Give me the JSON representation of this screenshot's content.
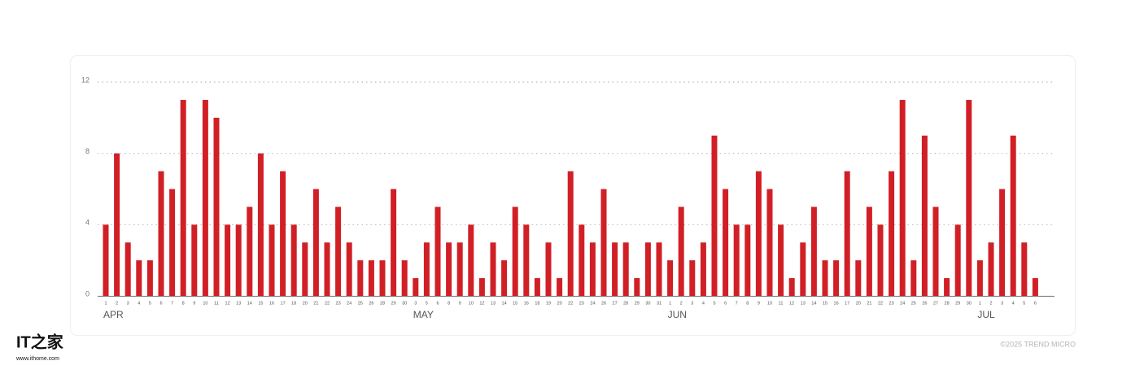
{
  "chart_data": {
    "type": "bar",
    "color": "#d11f26",
    "ylim": [
      0,
      12
    ],
    "yticks": [
      0,
      4,
      8,
      12
    ],
    "grid": true,
    "groups": [
      {
        "name": "APR",
        "categories": [
          "1",
          "2",
          "3",
          "4",
          "5",
          "6",
          "7",
          "8",
          "9",
          "10",
          "11",
          "12",
          "13",
          "14",
          "15",
          "16",
          "17",
          "18",
          "20",
          "21",
          "22",
          "23",
          "24",
          "25",
          "26",
          "28",
          "29",
          "30"
        ],
        "values": [
          4,
          8,
          3,
          2,
          2,
          7,
          6,
          11,
          4,
          11,
          10,
          4,
          4,
          5,
          8,
          4,
          7,
          4,
          3,
          6,
          3,
          5,
          3,
          2,
          2,
          2,
          6,
          2
        ]
      },
      {
        "name": "MAY",
        "categories": [
          "3",
          "5",
          "6",
          "8",
          "9",
          "10",
          "12",
          "13",
          "14",
          "15",
          "16",
          "18",
          "19",
          "20",
          "22",
          "23",
          "24",
          "26",
          "27",
          "28",
          "29",
          "30",
          "31"
        ],
        "values": [
          1,
          3,
          5,
          3,
          3,
          4,
          1,
          3,
          2,
          5,
          4,
          1,
          3,
          1,
          7,
          4,
          3,
          6,
          3,
          3,
          1,
          3,
          3
        ]
      },
      {
        "name": "JUN",
        "categories": [
          "1",
          "2",
          "3",
          "4",
          "5",
          "6",
          "7",
          "8",
          "9",
          "10",
          "11",
          "12",
          "13",
          "14",
          "15",
          "16",
          "17",
          "20",
          "21",
          "22",
          "23",
          "24",
          "25",
          "26",
          "27",
          "28",
          "29",
          "30"
        ],
        "values": [
          2,
          5,
          2,
          3,
          9,
          6,
          4,
          4,
          7,
          6,
          4,
          1,
          3,
          5,
          2,
          2,
          7,
          2,
          5,
          4,
          7,
          11,
          2,
          9,
          5,
          1,
          4,
          11
        ]
      },
      {
        "name": "JUL",
        "categories": [
          "1",
          "2",
          "3",
          "4",
          "5",
          "6"
        ],
        "values": [
          2,
          3,
          6,
          9,
          3,
          1
        ]
      }
    ],
    "credit": "©2025 TREND MICRO"
  },
  "watermark": {
    "logo": "IT之家",
    "url": "www.ithome.com"
  }
}
